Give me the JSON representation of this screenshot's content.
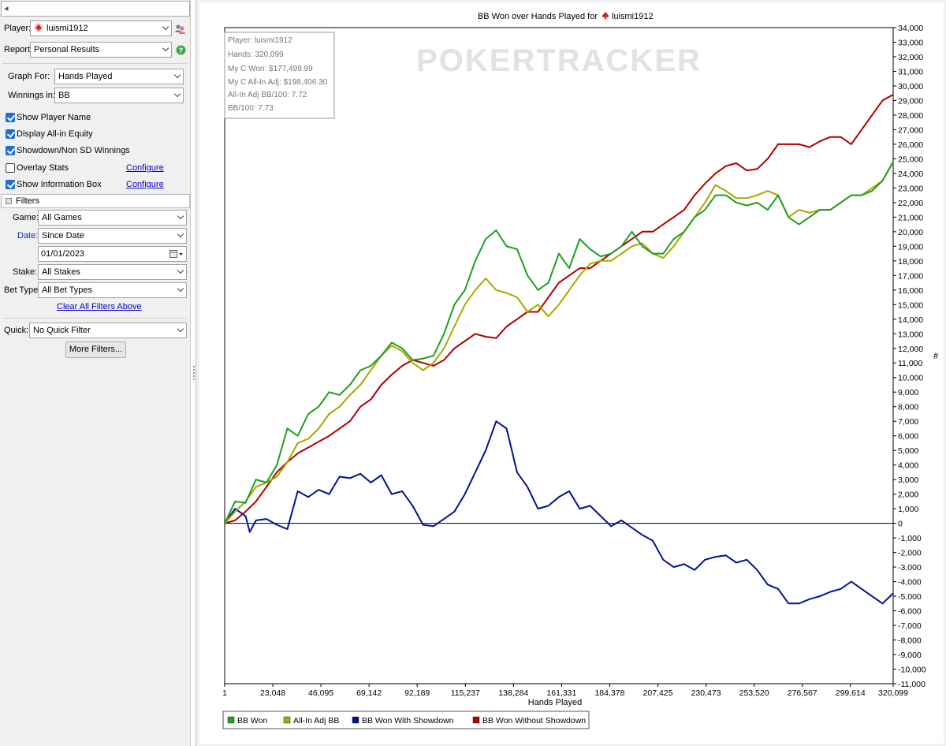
{
  "left_panel": {
    "top_input_text": "◂",
    "player": {
      "label": "Player:",
      "value": "luismi1912"
    },
    "report": {
      "label": "Report:",
      "value": "Personal Results"
    },
    "graph_for": {
      "label": "Graph For:",
      "value": "Hands Played"
    },
    "winnings_in": {
      "label": "Winnings in:",
      "value": "BB"
    },
    "checkboxes": [
      {
        "label": "Show Player Name",
        "checked": true
      },
      {
        "label": "Display All-in Equity",
        "checked": true
      },
      {
        "label": "Showdown/Non SD Winnings",
        "checked": true
      },
      {
        "label": "Overlay Stats",
        "checked": false
      },
      {
        "label": "Show Information Box",
        "checked": true
      }
    ],
    "configure_label": "Configure",
    "filters_title": "Filters",
    "game": {
      "label": "Game:",
      "value": "All Games"
    },
    "date": {
      "label": "Date:",
      "value": "Since Date"
    },
    "date_input": "01/01/2023",
    "stake": {
      "label": "Stake:",
      "value": "All Stakes"
    },
    "bet_type": {
      "label": "Bet Type:",
      "value": "All Bet Types"
    },
    "clear_filters": "Clear All Filters Above",
    "quick": {
      "label": "Quick:",
      "value": "No Quick Filter"
    },
    "more_filters": "More Filters..."
  },
  "chart": {
    "title_prefix": "BB Won over Hands Played for",
    "title_player": "luismi1912",
    "watermark": "POKERTRACKER",
    "right_axis_marker": "#",
    "info_box": [
      "Player: luismi1912",
      "Hands: 320,099",
      "My C Won: $177,499.99",
      "My C All-In Adj: $198,406.30",
      "All-In Adj BB/100: 7.72",
      "BB/100: 7.73"
    ],
    "colors": {
      "bb_won": "#1f9f1f",
      "allin_adj": "#a8a800",
      "showdown": "#00129a",
      "non_showdown": "#b00000"
    }
  },
  "chart_data": {
    "type": "line",
    "title": "BB Won over Hands Played for luismi1912",
    "xlabel": "Hands Played",
    "ylabel": "",
    "x_ticks": [
      "1",
      "23,048",
      "46,095",
      "69,142",
      "92,189",
      "115,237",
      "138,284",
      "161,331",
      "184,378",
      "207,425",
      "230,473",
      "253,520",
      "276,567",
      "299,614",
      "320,099"
    ],
    "y_ticks": [
      "34,000",
      "33,000",
      "32,000",
      "31,000",
      "30,000",
      "29,000",
      "28,000",
      "27,000",
      "26,000",
      "25,000",
      "24,000",
      "23,000",
      "22,000",
      "21,000",
      "20,000",
      "19,000",
      "18,000",
      "17,000",
      "16,000",
      "15,000",
      "14,000",
      "13,000",
      "12,000",
      "11,000",
      "10,000",
      "9,000",
      "8,000",
      "7,000",
      "6,000",
      "5,000",
      "4,000",
      "3,000",
      "2,000",
      "1,000",
      "0",
      "-1,000",
      "-2,000",
      "-3,000",
      "-4,000",
      "-5,000",
      "-6,000",
      "-7,000",
      "-8,000",
      "-9,000",
      "-10,000",
      "-11,000"
    ],
    "xlim": [
      1,
      320099
    ],
    "ylim": [
      -11000,
      34000
    ],
    "legend_position": "bottom-left",
    "series": [
      {
        "name": "BB Won",
        "points": [
          [
            1,
            0
          ],
          [
            5000,
            1500
          ],
          [
            10000,
            1400
          ],
          [
            15000,
            3000
          ],
          [
            20000,
            2800
          ],
          [
            25000,
            4000
          ],
          [
            30000,
            6500
          ],
          [
            35000,
            6000
          ],
          [
            40000,
            7500
          ],
          [
            45000,
            8000
          ],
          [
            50000,
            9000
          ],
          [
            55000,
            8800
          ],
          [
            60000,
            9500
          ],
          [
            65000,
            10500
          ],
          [
            70000,
            10800
          ],
          [
            75000,
            11500
          ],
          [
            80000,
            12400
          ],
          [
            85000,
            12000
          ],
          [
            90000,
            11200
          ],
          [
            95000,
            11300
          ],
          [
            100000,
            11500
          ],
          [
            105000,
            13000
          ],
          [
            110000,
            15000
          ],
          [
            115000,
            16000
          ],
          [
            120000,
            18000
          ],
          [
            125000,
            19500
          ],
          [
            130000,
            20100
          ],
          [
            135000,
            19000
          ],
          [
            140000,
            18800
          ],
          [
            145000,
            17000
          ],
          [
            150000,
            16000
          ],
          [
            155000,
            16500
          ],
          [
            160000,
            18500
          ],
          [
            165000,
            17500
          ],
          [
            170000,
            19500
          ],
          [
            175000,
            18800
          ],
          [
            180000,
            18300
          ],
          [
            185000,
            18500
          ],
          [
            190000,
            19000
          ],
          [
            195000,
            20000
          ],
          [
            200000,
            19000
          ],
          [
            205000,
            18500
          ],
          [
            210000,
            18500
          ],
          [
            215000,
            19500
          ],
          [
            220000,
            20000
          ],
          [
            225000,
            21000
          ],
          [
            230000,
            21500
          ],
          [
            235000,
            22500
          ],
          [
            240000,
            22500
          ],
          [
            245000,
            22000
          ],
          [
            250000,
            21800
          ],
          [
            255000,
            22000
          ],
          [
            260000,
            21500
          ],
          [
            265000,
            22500
          ],
          [
            270000,
            21000
          ],
          [
            275000,
            20500
          ],
          [
            280000,
            21000
          ],
          [
            285000,
            21500
          ],
          [
            290000,
            21500
          ],
          [
            295000,
            22000
          ],
          [
            300000,
            22500
          ],
          [
            305000,
            22500
          ],
          [
            310000,
            22800
          ],
          [
            315000,
            23500
          ],
          [
            320099,
            24800
          ]
        ]
      },
      {
        "name": "All-In Adj BB",
        "points": [
          [
            1,
            0
          ],
          [
            5000,
            800
          ],
          [
            10000,
            1500
          ],
          [
            15000,
            2500
          ],
          [
            20000,
            2800
          ],
          [
            25000,
            3200
          ],
          [
            30000,
            4200
          ],
          [
            35000,
            5500
          ],
          [
            40000,
            5800
          ],
          [
            45000,
            6500
          ],
          [
            50000,
            7500
          ],
          [
            55000,
            8000
          ],
          [
            60000,
            8800
          ],
          [
            65000,
            9500
          ],
          [
            70000,
            10500
          ],
          [
            75000,
            11500
          ],
          [
            80000,
            12200
          ],
          [
            85000,
            11800
          ],
          [
            90000,
            11000
          ],
          [
            95000,
            10500
          ],
          [
            100000,
            11000
          ],
          [
            105000,
            12000
          ],
          [
            110000,
            13500
          ],
          [
            115000,
            15000
          ],
          [
            120000,
            16000
          ],
          [
            125000,
            16800
          ],
          [
            130000,
            16000
          ],
          [
            135000,
            15800
          ],
          [
            140000,
            15500
          ],
          [
            145000,
            14500
          ],
          [
            150000,
            15000
          ],
          [
            155000,
            14200
          ],
          [
            160000,
            15000
          ],
          [
            165000,
            16000
          ],
          [
            170000,
            17000
          ],
          [
            175000,
            17800
          ],
          [
            180000,
            18000
          ],
          [
            185000,
            18000
          ],
          [
            190000,
            18500
          ],
          [
            195000,
            19000
          ],
          [
            200000,
            19200
          ],
          [
            205000,
            18500
          ],
          [
            210000,
            18200
          ],
          [
            215000,
            19000
          ],
          [
            220000,
            20000
          ],
          [
            225000,
            21000
          ],
          [
            230000,
            22000
          ],
          [
            235000,
            23200
          ],
          [
            240000,
            22800
          ],
          [
            245000,
            22300
          ],
          [
            250000,
            22300
          ],
          [
            255000,
            22500
          ],
          [
            260000,
            22800
          ],
          [
            265000,
            22500
          ],
          [
            270000,
            21000
          ],
          [
            275000,
            21500
          ],
          [
            280000,
            21300
          ],
          [
            285000,
            21500
          ],
          [
            290000,
            21500
          ],
          [
            295000,
            22000
          ],
          [
            300000,
            22500
          ],
          [
            305000,
            22500
          ],
          [
            310000,
            23000
          ],
          [
            315000,
            23500
          ],
          [
            320099,
            24800
          ]
        ]
      },
      {
        "name": "BB Won With Showdown",
        "points": [
          [
            1,
            0
          ],
          [
            5000,
            1000
          ],
          [
            10000,
            500
          ],
          [
            12000,
            -600
          ],
          [
            15000,
            200
          ],
          [
            20000,
            300
          ],
          [
            25000,
            -100
          ],
          [
            30000,
            -400
          ],
          [
            35000,
            2200
          ],
          [
            40000,
            1800
          ],
          [
            45000,
            2300
          ],
          [
            50000,
            2000
          ],
          [
            55000,
            3200
          ],
          [
            60000,
            3100
          ],
          [
            65000,
            3400
          ],
          [
            70000,
            2800
          ],
          [
            75000,
            3300
          ],
          [
            80000,
            2000
          ],
          [
            85000,
            2200
          ],
          [
            90000,
            1200
          ],
          [
            95000,
            -100
          ],
          [
            100000,
            -200
          ],
          [
            105000,
            300
          ],
          [
            110000,
            800
          ],
          [
            115000,
            2000
          ],
          [
            120000,
            3500
          ],
          [
            125000,
            5000
          ],
          [
            130000,
            7000
          ],
          [
            135000,
            6500
          ],
          [
            140000,
            3500
          ],
          [
            145000,
            2500
          ],
          [
            150000,
            1000
          ],
          [
            155000,
            1200
          ],
          [
            160000,
            1800
          ],
          [
            165000,
            2200
          ],
          [
            170000,
            1000
          ],
          [
            175000,
            1200
          ],
          [
            180000,
            500
          ],
          [
            185000,
            -200
          ],
          [
            190000,
            200
          ],
          [
            195000,
            -300
          ],
          [
            200000,
            -800
          ],
          [
            205000,
            -1200
          ],
          [
            210000,
            -2500
          ],
          [
            215000,
            -3000
          ],
          [
            220000,
            -2800
          ],
          [
            225000,
            -3200
          ],
          [
            230000,
            -2500
          ],
          [
            235000,
            -2300
          ],
          [
            240000,
            -2200
          ],
          [
            245000,
            -2700
          ],
          [
            250000,
            -2500
          ],
          [
            255000,
            -3200
          ],
          [
            260000,
            -4200
          ],
          [
            265000,
            -4500
          ],
          [
            270000,
            -5500
          ],
          [
            275000,
            -5500
          ],
          [
            280000,
            -5200
          ],
          [
            285000,
            -5000
          ],
          [
            290000,
            -4700
          ],
          [
            295000,
            -4500
          ],
          [
            300000,
            -4000
          ],
          [
            305000,
            -4500
          ],
          [
            310000,
            -5000
          ],
          [
            315000,
            -5500
          ],
          [
            320099,
            -4800
          ]
        ]
      },
      {
        "name": "BB Won Without Showdown",
        "points": [
          [
            1,
            0
          ],
          [
            5000,
            200
          ],
          [
            10000,
            800
          ],
          [
            15000,
            1500
          ],
          [
            20000,
            2500
          ],
          [
            25000,
            3500
          ],
          [
            30000,
            4200
          ],
          [
            35000,
            4800
          ],
          [
            40000,
            5200
          ],
          [
            45000,
            5600
          ],
          [
            50000,
            6000
          ],
          [
            55000,
            6500
          ],
          [
            60000,
            7000
          ],
          [
            65000,
            8000
          ],
          [
            70000,
            8500
          ],
          [
            75000,
            9500
          ],
          [
            80000,
            10200
          ],
          [
            85000,
            10800
          ],
          [
            90000,
            11200
          ],
          [
            95000,
            11000
          ],
          [
            100000,
            10800
          ],
          [
            105000,
            11200
          ],
          [
            110000,
            12000
          ],
          [
            115000,
            12500
          ],
          [
            120000,
            13000
          ],
          [
            125000,
            12800
          ],
          [
            130000,
            12700
          ],
          [
            135000,
            13500
          ],
          [
            140000,
            14000
          ],
          [
            145000,
            14500
          ],
          [
            150000,
            14500
          ],
          [
            155000,
            15500
          ],
          [
            160000,
            16500
          ],
          [
            165000,
            17000
          ],
          [
            170000,
            17500
          ],
          [
            175000,
            17500
          ],
          [
            180000,
            18000
          ],
          [
            185000,
            18500
          ],
          [
            190000,
            19000
          ],
          [
            195000,
            19500
          ],
          [
            200000,
            20000
          ],
          [
            205000,
            20000
          ],
          [
            210000,
            20500
          ],
          [
            215000,
            21000
          ],
          [
            220000,
            21500
          ],
          [
            225000,
            22500
          ],
          [
            230000,
            23300
          ],
          [
            235000,
            24000
          ],
          [
            240000,
            24500
          ],
          [
            245000,
            24700
          ],
          [
            250000,
            24200
          ],
          [
            255000,
            24300
          ],
          [
            260000,
            25000
          ],
          [
            265000,
            26000
          ],
          [
            270000,
            26000
          ],
          [
            275000,
            26000
          ],
          [
            280000,
            25800
          ],
          [
            285000,
            26200
          ],
          [
            290000,
            26500
          ],
          [
            295000,
            26500
          ],
          [
            300000,
            26000
          ],
          [
            305000,
            27000
          ],
          [
            310000,
            28000
          ],
          [
            315000,
            29000
          ],
          [
            320099,
            29400
          ]
        ]
      }
    ]
  }
}
